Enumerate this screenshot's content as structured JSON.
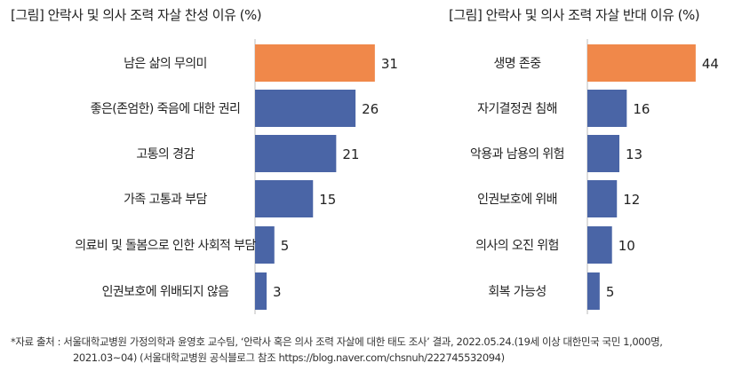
{
  "chart_data": [
    {
      "type": "bar",
      "orientation": "horizontal",
      "title": "[그림] 안락사 및 의사 조력 자살 찬성 이유 (%)",
      "categories": [
        "남은 삶의 무의미",
        "좋은(존엄한) 죽음에 대한 권리",
        "고통의 경감",
        "가족 고통과 부담",
        "의료비 및 돌봄으로 인한 사회적 부담",
        "인권보호에 위배되지 않음"
      ],
      "values": [
        31,
        26,
        21,
        15,
        5,
        3
      ],
      "highlight_index": 0,
      "xlim": [
        0,
        35
      ]
    },
    {
      "type": "bar",
      "orientation": "horizontal",
      "title": "[그림] 안락사 및 의사 조력 자살 반대 이유 (%)",
      "categories": [
        "생명 존중",
        "자기결정권 침해",
        "악용과 남용의 위험",
        "인권보호에 위배",
        "의사의 오진 위험",
        "회복 가능성"
      ],
      "values": [
        44,
        16,
        13,
        12,
        10,
        5
      ],
      "highlight_index": 0,
      "xlim": [
        0,
        50
      ]
    }
  ],
  "colors": {
    "highlight": "#F0884A",
    "bar": "#4A65A6",
    "axis": "#bbbbbb"
  },
  "footnote": {
    "line1": "*자료 출처 : 서울대학교병원 가정의학과 윤영호 교수팀, ‘안락사 혹은 의사 조력 자살에 대한 태도 조사’ 결과, 2022.05.24.(19세 이상 대한민국 국민 1,000명,",
    "line2": "2021.03~04) (서울대학교병원 공식블로그 참조 https://blog.naver.com/chsnuh/222745532094)"
  }
}
